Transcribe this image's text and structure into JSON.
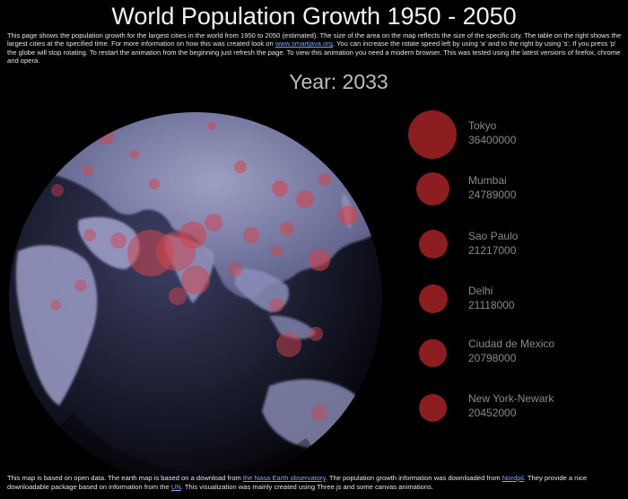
{
  "page": {
    "title": "World Population Growth 1950 - 2050",
    "intro": {
      "text_before_link": "This page shows the population growth for the largest cities in the world from 1950 to 2050 (estimated). The size of the area on the map reflects the size of the specific city. The table on the right shows the largest cities at the specified time. For more information on how this was created look on ",
      "link_text": "www.smartjava.org",
      "text_after_link": ". You can increase the rotate speed left by using 'a' and to the right by using 's'. If you press 'p' the globe will stop rotating. To restart the animation from the beginning just refresh the page. To view this animation you need a modern browser. This was tested using the latest versions of firefox, chrome and opera."
    },
    "year_label": "Year: 2033"
  },
  "cities": [
    {
      "name": "Tokyo",
      "population": "36400000"
    },
    {
      "name": "Mumbai",
      "population": "24789000"
    },
    {
      "name": "Sao Paulo",
      "population": "21217000"
    },
    {
      "name": "Delhi",
      "population": "21118000"
    },
    {
      "name": "Ciudad de Mexico",
      "population": "20798000"
    },
    {
      "name": "New York-Newark",
      "population": "20452000"
    }
  ],
  "footer": {
    "part1": "This map is based on open data. The earth map is based on a download from ",
    "link1": "the Nasa Earth observatory",
    "part2": ". The population growth information was downloaded from ",
    "link2": "Nordpil",
    "part3": ". They provide a nice downloadable package based on information from the ",
    "link3": "UN",
    "part4": ". This visualization was mainly created using Three.js and some canvas animations."
  },
  "colors": {
    "background": "#000000",
    "city_circle": "#8c1d20",
    "globe_hotspot": "#d0454f",
    "link": "#7aa7ff"
  }
}
